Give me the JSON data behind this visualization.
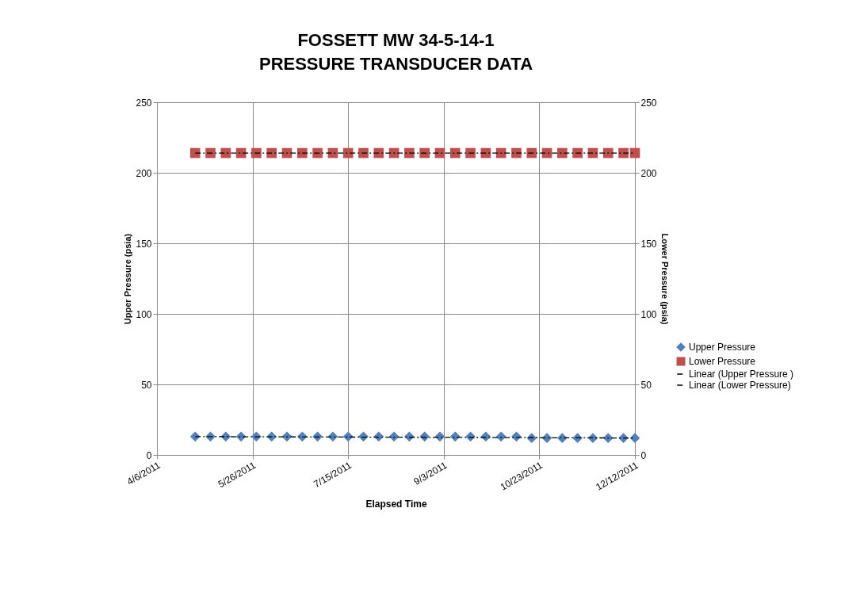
{
  "chart_data": {
    "type": "scatter",
    "title": "FOSSETT MW 34-5-14-1\nPRESSURE TRANSDUCER DATA",
    "xlabel": "Elapsed Time",
    "ylabel": "Upper Pressure (psia)",
    "y2label": "Lower Pressure (psia)",
    "x": [
      "2011-04-26",
      "2011-05-04",
      "2011-05-12",
      "2011-05-20",
      "2011-05-28",
      "2011-06-05",
      "2011-06-13",
      "2011-06-21",
      "2011-06-29",
      "2011-07-07",
      "2011-07-15",
      "2011-07-23",
      "2011-07-31",
      "2011-08-08",
      "2011-08-16",
      "2011-08-24",
      "2011-09-01",
      "2011-09-09",
      "2011-09-17",
      "2011-09-25",
      "2011-10-03",
      "2011-10-11",
      "2011-10-19",
      "2011-10-27",
      "2011-11-04",
      "2011-11-12",
      "2011-11-20",
      "2011-11-28",
      "2011-12-06",
      "2011-12-12"
    ],
    "series": [
      {
        "name": "Upper Pressure",
        "marker": "diamond",
        "color": "#4f81bd",
        "values": [
          13,
          13,
          13,
          13,
          13,
          13,
          13,
          13,
          13,
          13,
          13,
          13,
          13,
          13,
          13,
          13,
          13,
          13,
          13,
          13,
          13,
          13,
          12,
          12,
          12,
          12,
          12,
          12,
          12,
          12
        ]
      },
      {
        "name": "Lower Pressure",
        "marker": "square",
        "axis": "y2",
        "color": "#c0504d",
        "values": [
          214,
          214,
          214,
          214,
          214,
          214,
          214,
          214,
          214,
          214,
          214,
          214,
          214,
          214,
          214,
          214,
          214,
          214,
          214,
          214,
          214,
          214,
          214,
          214,
          214,
          214,
          214,
          214,
          214,
          214
        ]
      },
      {
        "name": "Linear (Upper Pressure )",
        "type": "line",
        "line_style": "dashed",
        "color": "#000000",
        "x": [
          "2011-04-26",
          "2011-12-12"
        ],
        "values": [
          13,
          12
        ]
      },
      {
        "name": "Linear (Lower Pressure)",
        "type": "line",
        "line_style": "dashed",
        "axis": "y2",
        "color": "#000000",
        "x": [
          "2011-04-26",
          "2011-12-12"
        ],
        "values": [
          214,
          214
        ]
      }
    ],
    "xlim": [
      "2011-04-06",
      "2011-12-12"
    ],
    "xticks": [
      {
        "value": "2011-04-06",
        "label": "4/6/2011"
      },
      {
        "value": "2011-05-26",
        "label": "5/26/2011"
      },
      {
        "value": "2011-07-15",
        "label": "7/15/2011"
      },
      {
        "value": "2011-09-03",
        "label": "9/3/2011"
      },
      {
        "value": "2011-10-23",
        "label": "10/23/2011"
      },
      {
        "value": "2011-12-12",
        "label": "12/12/2011"
      }
    ],
    "ylim": [
      0,
      250
    ],
    "yticks": [
      0,
      50,
      100,
      150,
      200,
      250
    ],
    "y2lim": [
      0,
      250
    ],
    "y2ticks": [
      0,
      50,
      100,
      150,
      200,
      250
    ],
    "grid": true,
    "legend": "right"
  }
}
